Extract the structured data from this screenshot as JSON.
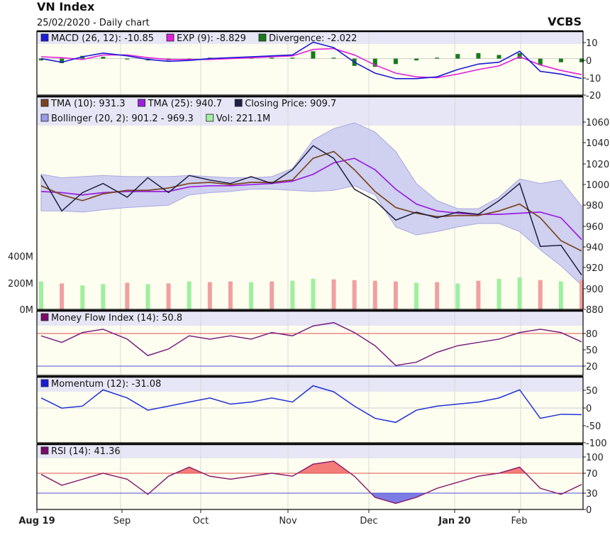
{
  "header": {
    "title": "VN Index",
    "subtitle": "25/02/2020 - Daily chart",
    "brand": "VCBS"
  },
  "x_labels": [
    "Aug 19",
    "Sep",
    "Oct",
    "Nov",
    "Dec",
    "Jan 20",
    "Feb"
  ],
  "chart_data": [
    {
      "type": "line",
      "panel": "MACD",
      "ylim": [
        -20,
        15
      ],
      "yticks": [
        "10",
        "0",
        "-10",
        "-20"
      ],
      "legend": [
        {
          "label": "MACD (26, 12): -10.85",
          "color": "#1a1ad8"
        },
        {
          "label": "EXP (9): -8.829",
          "color": "#e020d8"
        },
        {
          "label": "Divergence: -2.022",
          "color": "#1a7a1a"
        }
      ],
      "x": [
        0,
        6,
        12,
        18,
        25,
        31,
        37,
        43,
        49,
        55,
        61,
        67,
        73,
        79,
        85,
        91,
        97,
        103,
        109,
        115,
        121,
        127,
        133,
        139,
        145,
        151,
        157
      ],
      "series": [
        {
          "name": "MACD",
          "color": "#1a1ad8",
          "values": [
            0.0,
            -2.0,
            1.0,
            3.0,
            1.5,
            -0.5,
            -1.5,
            -1.0,
            0.0,
            0.5,
            1.0,
            1.5,
            2.0,
            9.0,
            6.0,
            -2.0,
            -8.0,
            -11.0,
            -11.0,
            -10.0,
            -6.0,
            -3.0,
            -2.0,
            4.0,
            -7.0,
            -8.5,
            -10.9
          ]
        },
        {
          "name": "EXP",
          "color": "#e020d8",
          "values": [
            1.0,
            0.5,
            -0.5,
            2.0,
            2.0,
            0.5,
            -0.5,
            -0.5,
            -0.5,
            0.0,
            0.5,
            1.0,
            1.5,
            5.0,
            5.5,
            2.0,
            -3.5,
            -8.0,
            -10.0,
            -10.5,
            -8.5,
            -6.0,
            -4.0,
            1.0,
            -3.5,
            -6.5,
            -8.8
          ]
        }
      ],
      "histogram": {
        "name": "Divergence",
        "color": "#1a7a1a",
        "values": [
          -1.0,
          -2.5,
          1.5,
          1.0,
          -0.5,
          -1.0,
          -1.0,
          -0.5,
          0.5,
          0.5,
          0.5,
          0.5,
          0.5,
          4.0,
          0.5,
          -4.0,
          -4.5,
          -3.0,
          -1.0,
          0.5,
          2.5,
          3.0,
          2.0,
          3.0,
          -3.5,
          -2.0,
          -2.0
        ]
      }
    },
    {
      "type": "line",
      "panel": "Price",
      "ylim": [
        880,
        1060
      ],
      "yticks": [
        "1060",
        "1040",
        "1020",
        "1000",
        "980",
        "960",
        "940",
        "920",
        "900",
        "880"
      ],
      "volume_ticks": [
        "400M",
        "200M",
        "0M"
      ],
      "volume_max": 400,
      "legend": [
        {
          "label": "TMA (10): 931.3",
          "color": "#7a4520"
        },
        {
          "label": "TMA (25): 940.7",
          "color": "#9a20e0"
        },
        {
          "label": "Closing Price: 909.7",
          "color": "#202040"
        },
        {
          "label": "Bollinger (20, 2): 901.2 - 969.3",
          "color": "#9a9ae8"
        },
        {
          "label": "Vol: 221.1M",
          "color": "#a0f0a0"
        }
      ],
      "x": [
        0,
        6,
        12,
        18,
        25,
        31,
        37,
        43,
        49,
        55,
        61,
        67,
        73,
        79,
        85,
        91,
        97,
        103,
        109,
        115,
        121,
        127,
        133,
        139,
        145,
        151,
        157
      ],
      "series": [
        {
          "name": "Closing Price",
          "color": "#202040",
          "values": [
            997,
            966,
            982,
            990,
            978,
            995,
            982,
            997,
            993,
            990,
            996,
            990,
            1002,
            1023,
            1012,
            985,
            975,
            958,
            965,
            960,
            965,
            963,
            975,
            990,
            935,
            936,
            910
          ]
        },
        {
          "name": "TMA (10)",
          "color": "#7a4520",
          "values": [
            988,
            980,
            975,
            981,
            984,
            984,
            986,
            990,
            991,
            989,
            991,
            991,
            993,
            1012,
            1018,
            1002,
            983,
            969,
            964,
            961,
            962,
            962,
            966,
            972,
            960,
            940,
            931
          ]
        },
        {
          "name": "TMA (25)",
          "color": "#9a20e0",
          "values": [
            983,
            982,
            980,
            982,
            983,
            983,
            983,
            987,
            988,
            988,
            989,
            990,
            992,
            998,
            1008,
            1012,
            1002,
            985,
            972,
            966,
            964,
            963,
            963,
            964,
            965,
            960,
            941
          ]
        }
      ],
      "bollinger_upper": [
        998,
        995,
        996,
        997,
        996,
        996,
        996,
        997,
        996,
        995,
        995,
        996,
        1003,
        1028,
        1038,
        1043,
        1035,
        1018,
        990,
        975,
        968,
        968,
        978,
        994,
        990,
        993,
        970
      ],
      "bollinger_lower": [
        966,
        966,
        965,
        967,
        969,
        970,
        971,
        980,
        982,
        983,
        985,
        985,
        984,
        983,
        984,
        988,
        980,
        952,
        945,
        948,
        952,
        955,
        955,
        948,
        932,
        918,
        901
      ],
      "volume": [
        210,
        195,
        180,
        190,
        200,
        190,
        195,
        210,
        205,
        210,
        205,
        210,
        215,
        230,
        225,
        220,
        215,
        210,
        200,
        205,
        195,
        215,
        230,
        240,
        220,
        210,
        221
      ]
    },
    {
      "type": "line",
      "panel": "Money Flow Index",
      "ylim": [
        0,
        100
      ],
      "yticks": [
        "80",
        "50",
        "20"
      ],
      "legend": [
        {
          "label": "Money Flow Index (14): 50.8",
          "color": "#7a0a6a"
        }
      ],
      "x": [
        0,
        6,
        12,
        18,
        25,
        31,
        37,
        43,
        49,
        55,
        61,
        67,
        73,
        79,
        85,
        91,
        97,
        103,
        109,
        115,
        121,
        127,
        133,
        139,
        145,
        151,
        157
      ],
      "series": [
        {
          "name": "Money Flow Index",
          "color": "#7a2080",
          "values": [
            60,
            50,
            65,
            70,
            55,
            30,
            40,
            60,
            55,
            60,
            55,
            65,
            60,
            75,
            80,
            65,
            45,
            15,
            20,
            35,
            45,
            50,
            55,
            65,
            70,
            65,
            50.8
          ]
        }
      ]
    },
    {
      "type": "line",
      "panel": "Momentum",
      "ylim": [
        -100,
        60
      ],
      "yticks": [
        "50",
        "0",
        "-50",
        "-100"
      ],
      "legend": [
        {
          "label": "Momentum (12): -31.08",
          "color": "#1a1ad8"
        }
      ],
      "x": [
        0,
        6,
        12,
        18,
        25,
        31,
        37,
        43,
        49,
        55,
        61,
        67,
        73,
        79,
        85,
        91,
        97,
        103,
        109,
        115,
        121,
        127,
        133,
        139,
        145,
        151,
        157
      ],
      "series": [
        {
          "name": "Momentum",
          "color": "#2030d8",
          "values": [
            10,
            -15,
            -10,
            30,
            10,
            -20,
            -10,
            0,
            10,
            -5,
            0,
            10,
            0,
            40,
            25,
            -10,
            -40,
            -50,
            -20,
            -10,
            -5,
            0,
            10,
            30,
            -40,
            -30,
            -31
          ]
        }
      ]
    },
    {
      "type": "line",
      "panel": "RSI",
      "ylim": [
        0,
        100
      ],
      "yticks": [
        "100",
        "70",
        "30",
        "0"
      ],
      "legend": [
        {
          "label": "RSI (14): 41.36",
          "color": "#7a0a6a"
        }
      ],
      "x": [
        0,
        6,
        12,
        18,
        25,
        31,
        37,
        43,
        49,
        55,
        61,
        67,
        73,
        79,
        85,
        91,
        97,
        103,
        109,
        115,
        121,
        127,
        133,
        139,
        145,
        151,
        157
      ],
      "series": [
        {
          "name": "RSI",
          "color": "#8a2070",
          "values": [
            58,
            40,
            50,
            60,
            50,
            25,
            55,
            70,
            55,
            50,
            55,
            60,
            55,
            75,
            80,
            55,
            20,
            10,
            20,
            35,
            45,
            55,
            60,
            70,
            35,
            25,
            41.36
          ]
        }
      ]
    }
  ]
}
